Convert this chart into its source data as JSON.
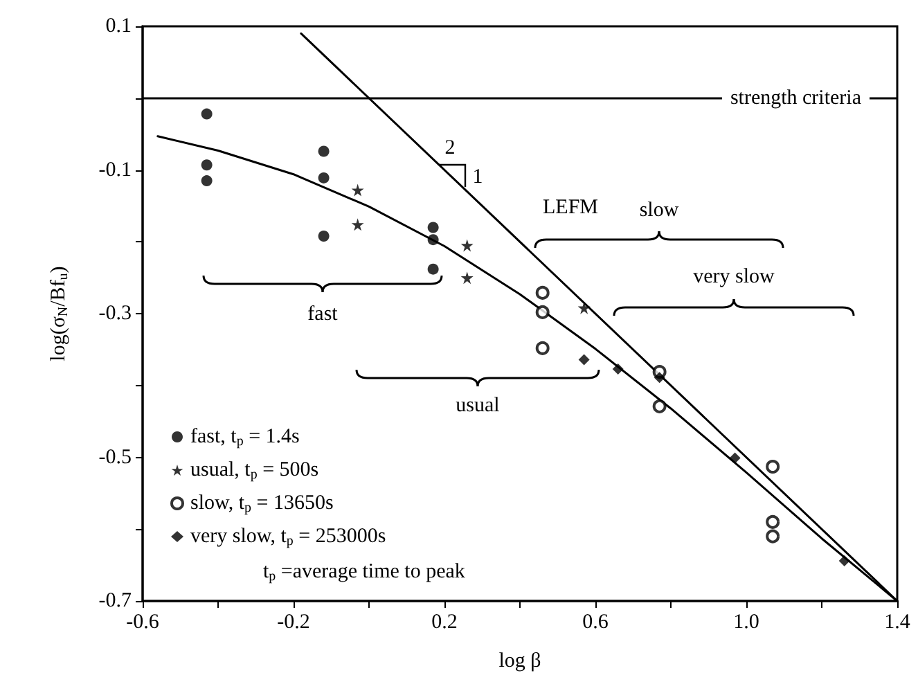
{
  "chart_data": {
    "type": "scatter",
    "xlabel": "log β",
    "ylabel": "log(σ$_{N}$/Bf$_{u}$)",
    "xlim": [
      -0.6,
      1.4
    ],
    "xticks": [
      -0.6,
      {
        "value": -0.4,
        "label": null
      },
      -0.2,
      {
        "value": 0,
        "label": null
      },
      0.2,
      {
        "value": 0.4,
        "label": null
      },
      0.6,
      {
        "value": 0.8,
        "label": null
      },
      {
        "value": 1,
        "label": "1.0"
      },
      {
        "value": 1.2,
        "label": null
      },
      1.4
    ],
    "ylim": [
      -0.7,
      0.1
    ],
    "yticks": [
      -0.7,
      {
        "value": -0.6,
        "label": null
      },
      -0.5,
      {
        "value": -0.4,
        "label": null
      },
      -0.3,
      {
        "value": -0.2,
        "label": null
      },
      -0.1,
      {
        "value": 0,
        "label": null
      },
      0.1
    ],
    "grid": false,
    "legend": "bottom left",
    "series": [
      {
        "name": "fast, t$_{p}$ = 1.4s",
        "marker": "circle",
        "color": "#000000",
        "x": [
          -0.43,
          -0.43,
          -0.43,
          -0.12,
          -0.12,
          -0.12,
          0.17,
          0.17,
          0.17
        ],
        "values": [
          -0.022,
          -0.093,
          -0.115,
          -0.074,
          -0.111,
          -0.192,
          -0.18,
          -0.197,
          -0.238
        ]
      },
      {
        "name": "usual, t$_{p}$ = 500s",
        "marker": "star",
        "color": "#000000",
        "x": [
          -0.03,
          -0.03,
          0.26,
          0.26,
          0.57
        ],
        "values": [
          -0.128,
          -0.176,
          -0.205,
          -0.25,
          -0.292
        ]
      },
      {
        "name": "slow, t$_{p}$ = 13650s",
        "marker": "open circle",
        "color": "#000000",
        "x": [
          0.46,
          0.46,
          0.46,
          0.77,
          0.77,
          1.07,
          1.07,
          1.07
        ],
        "values": [
          -0.271,
          -0.298,
          -0.348,
          -0.381,
          -0.429,
          -0.513,
          -0.59,
          -0.61
        ]
      },
      {
        "name": "very slow, t$_{p}$ = 253000s",
        "marker": "diamond",
        "color": "#000000",
        "x": [
          0.57,
          0.66,
          0.77,
          0.97,
          1.26
        ],
        "values": [
          -0.364,
          -0.377,
          -0.389,
          -0.501,
          -0.644
        ]
      },
      {
        "type": "line",
        "marker": "none",
        "color": "#000000",
        "x": [
          -0.56,
          -0.4,
          -0.2,
          0,
          0.2,
          0.4,
          0.6,
          0.8,
          1,
          1.2,
          1.4
        ],
        "values": [
          -0.053,
          -0.073,
          -0.106,
          -0.151,
          -0.206,
          -0.273,
          -0.349,
          -0.432,
          -0.521,
          -0.613,
          -0.7
        ]
      },
      {
        "type": "line",
        "marker": "none",
        "color": "#000000",
        "x": [
          -0.18,
          1.4
        ],
        "values": [
          0.09,
          -0.7
        ]
      }
    ],
    "ref_lines": [
      {
        "axis": "y",
        "value": 0,
        "label": "strength criteria",
        "color": "#000000"
      }
    ],
    "annotations": [
      "fast",
      "usual",
      "slow",
      "very slow",
      "LEFM",
      "2",
      "1",
      "t$_{p}$ =average time to peak"
    ]
  }
}
